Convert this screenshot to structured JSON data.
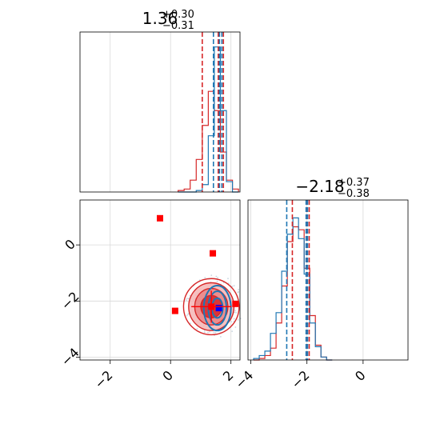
{
  "colors": {
    "red": "#d62728",
    "blue": "#1f77b4",
    "marker_red": "#ff0000",
    "marker_blue": "#0000ff",
    "grid": "#d9d9d9",
    "scatter": "#c8d6e0"
  },
  "chart_data": [
    {
      "panel": "marginal-param-1",
      "type": "histogram",
      "title": {
        "main": "1.36",
        "sup": "+0.30",
        "sub": "−0.31"
      },
      "xlim": [
        -3.0,
        2.3
      ],
      "grid": true,
      "bins": [
        0.35,
        0.55,
        0.75,
        0.95,
        1.15,
        1.35,
        1.55,
        1.75,
        1.95,
        2.15
      ],
      "series": [
        {
          "color": "red",
          "counts": [
            0.01,
            0.02,
            0.08,
            0.22,
            0.45,
            0.68,
            0.55,
            0.27,
            0.08,
            0.02
          ]
        },
        {
          "color": "blue",
          "counts": [
            0.0,
            0.0,
            0.0,
            0.01,
            0.05,
            0.38,
            0.98,
            0.55,
            0.07,
            0.0
          ]
        }
      ],
      "quantile_lines": [
        {
          "color": "red",
          "x": [
            1.05,
            1.58,
            1.75
          ]
        },
        {
          "color": "blue",
          "x": [
            1.42,
            1.62,
            1.7
          ]
        }
      ]
    },
    {
      "panel": "joint-param-1-vs-param-2",
      "type": "scatter",
      "xlim": [
        -3.0,
        2.3
      ],
      "ylim": [
        -4.1,
        1.6
      ],
      "xticks": [
        "−2",
        "0",
        "2"
      ],
      "yticks": [
        "−4",
        "−2",
        "0"
      ],
      "xtick_values": [
        -2,
        0,
        2
      ],
      "ytick_values": [
        -4,
        -2,
        0
      ],
      "grid": true,
      "contours": [
        {
          "color": "red",
          "center": [
            1.35,
            -2.2
          ],
          "radii": [
            [
              0.35,
              0.4
            ],
            [
              0.55,
              0.65
            ],
            [
              0.75,
              0.85
            ]
          ]
        },
        {
          "color": "blue",
          "center": [
            1.55,
            -2.25
          ],
          "radii": [
            [
              0.18,
              0.35
            ],
            [
              0.3,
              0.6
            ],
            [
              0.45,
              0.8
            ]
          ]
        }
      ],
      "markers": [
        {
          "color": "marker_red",
          "x": -0.35,
          "y": 0.95
        },
        {
          "color": "marker_red",
          "x": 1.4,
          "y": -0.3
        },
        {
          "color": "marker_red",
          "x": 0.15,
          "y": -2.35
        },
        {
          "color": "marker_red",
          "x": 2.15,
          "y": -2.1
        },
        {
          "color": "marker_red",
          "x": 1.35,
          "y": -2.2
        },
        {
          "color": "marker_blue",
          "x": 1.6,
          "y": -2.25
        }
      ]
    },
    {
      "panel": "marginal-param-2",
      "type": "histogram",
      "title": {
        "main": "−2.18",
        "sup": "+0.37",
        "sub": "−0.38"
      },
      "xlim": [
        -4.1,
        1.6
      ],
      "xticks": [
        "−4",
        "−2",
        "0"
      ],
      "xtick_values": [
        -4,
        -2,
        0
      ],
      "grid": true,
      "bins": [
        -3.8,
        -3.6,
        -3.4,
        -3.2,
        -3.0,
        -2.8,
        -2.6,
        -2.4,
        -2.2,
        -2.0,
        -1.8,
        -1.6,
        -1.4,
        -1.2
      ],
      "series": [
        {
          "color": "red",
          "counts": [
            0.0,
            0.01,
            0.03,
            0.08,
            0.25,
            0.5,
            0.8,
            0.9,
            0.88,
            0.62,
            0.3,
            0.1,
            0.02,
            0.0
          ]
        },
        {
          "color": "blue",
          "counts": [
            0.01,
            0.03,
            0.06,
            0.18,
            0.32,
            0.6,
            0.85,
            0.96,
            0.82,
            0.58,
            0.25,
            0.09,
            0.02,
            0.0
          ]
        }
      ],
      "quantile_lines": [
        {
          "color": "red",
          "x": [
            -2.52,
            -2.02,
            -1.92
          ]
        },
        {
          "color": "blue",
          "x": [
            -2.72,
            -2.03,
            -1.98
          ]
        }
      ]
    }
  ]
}
